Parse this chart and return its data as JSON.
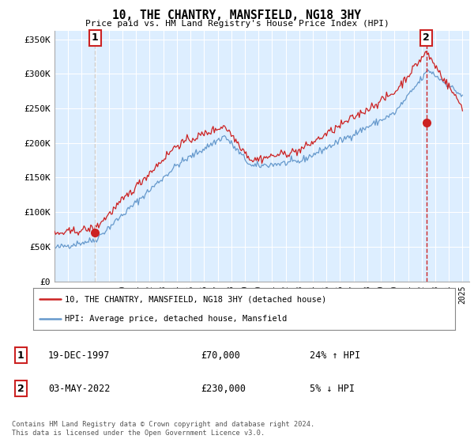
{
  "title": "10, THE CHANTRY, MANSFIELD, NG18 3HY",
  "subtitle": "Price paid vs. HM Land Registry's House Price Index (HPI)",
  "ylabel_ticks": [
    "£0",
    "£50K",
    "£100K",
    "£150K",
    "£200K",
    "£250K",
    "£300K",
    "£350K"
  ],
  "ytick_values": [
    0,
    50000,
    100000,
    150000,
    200000,
    250000,
    300000,
    350000
  ],
  "ylim": [
    0,
    362000
  ],
  "xlim_start": 1995.0,
  "xlim_end": 2025.5,
  "hpi_color": "#6699cc",
  "price_color": "#cc2222",
  "sale1_dashed_color": "#cccccc",
  "sale2_dashed_color": "#cc2222",
  "plot_bg_color": "#ddeeff",
  "sale1_x": 1997.97,
  "sale1_y": 70000,
  "sale2_x": 2022.34,
  "sale2_y": 230000,
  "legend_line1": "10, THE CHANTRY, MANSFIELD, NG18 3HY (detached house)",
  "legend_line2": "HPI: Average price, detached house, Mansfield",
  "table_row1_num": "1",
  "table_row1_date": "19-DEC-1997",
  "table_row1_price": "£70,000",
  "table_row1_hpi": "24% ↑ HPI",
  "table_row2_num": "2",
  "table_row2_date": "03-MAY-2022",
  "table_row2_price": "£230,000",
  "table_row2_hpi": "5% ↓ HPI",
  "footnote": "Contains HM Land Registry data © Crown copyright and database right 2024.\nThis data is licensed under the Open Government Licence v3.0.",
  "background_color": "#ffffff",
  "grid_color": "#ffffff"
}
